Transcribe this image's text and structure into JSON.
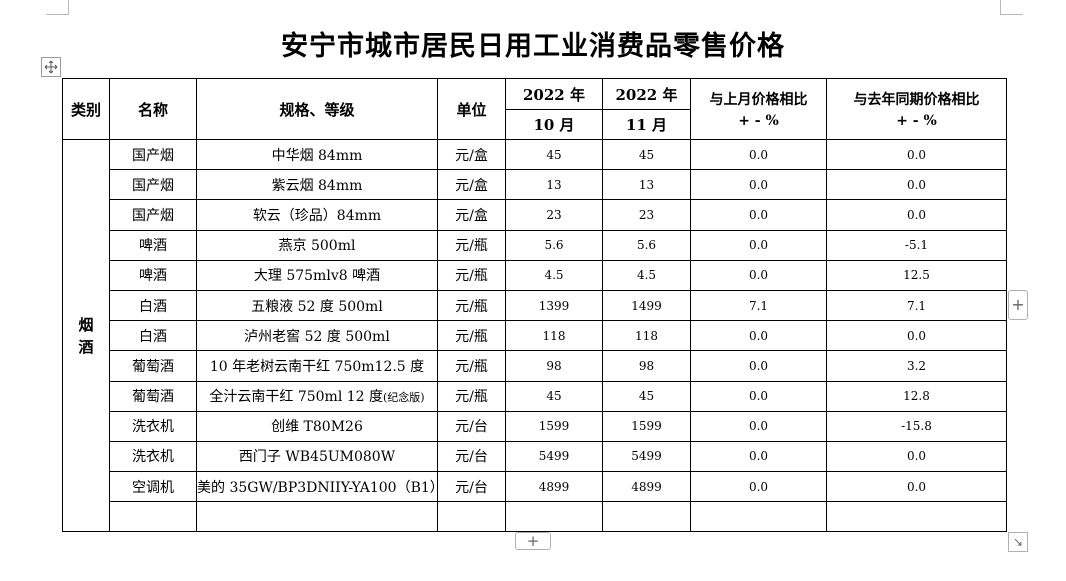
{
  "title": "安宁市城市居民日用工业消费品零售价格",
  "header": {
    "category": "类别",
    "name": "名称",
    "spec": "规格、等级",
    "unit": "单位",
    "year1": "2022 年",
    "month1": "10 月",
    "year2": "2022 年",
    "month2": "11 月",
    "mom_line1": "与上月价格相比",
    "mom_line2": "+ - %",
    "yoy_line1": "与去年同期价格相比",
    "yoy_line2": "+ - %"
  },
  "category_label": "烟酒",
  "category_chars": [
    "烟",
    "酒"
  ],
  "rows": [
    {
      "name": "国产烟",
      "spec": "中华烟 84mm",
      "spec_note": "",
      "unit": "元/盒",
      "oct": "45",
      "nov": "45",
      "mom": "0.0",
      "yoy": "0.0"
    },
    {
      "name": "国产烟",
      "spec": "紫云烟 84mm",
      "spec_note": "",
      "unit": "元/盒",
      "oct": "13",
      "nov": "13",
      "mom": "0.0",
      "yoy": "0.0"
    },
    {
      "name": "国产烟",
      "spec": "软云（珍品）84mm",
      "spec_note": "",
      "unit": "元/盒",
      "oct": "23",
      "nov": "23",
      "mom": "0.0",
      "yoy": "0.0"
    },
    {
      "name": "啤酒",
      "spec": "燕京 500ml",
      "spec_note": "",
      "unit": "元/瓶",
      "oct": "5.6",
      "nov": "5.6",
      "mom": "0.0",
      "yoy": "-5.1"
    },
    {
      "name": "啤酒",
      "spec": "大理 575mlv8 啤酒",
      "spec_note": "",
      "unit": "元/瓶",
      "oct": "4.5",
      "nov": "4.5",
      "mom": "0.0",
      "yoy": "12.5"
    },
    {
      "name": "白酒",
      "spec": "五粮液 52 度 500ml",
      "spec_note": "",
      "unit": "元/瓶",
      "oct": "1399",
      "nov": "1499",
      "mom": "7.1",
      "yoy": "7.1"
    },
    {
      "name": "白酒",
      "spec": "泸州老窖 52 度 500ml",
      "spec_note": "",
      "unit": "元/瓶",
      "oct": "118",
      "nov": "118",
      "mom": "0.0",
      "yoy": "0.0"
    },
    {
      "name": "葡萄酒",
      "spec": "10 年老树云南干红  750m12.5 度",
      "spec_note": "",
      "unit": "元/瓶",
      "oct": "98",
      "nov": "98",
      "mom": "0.0",
      "yoy": "3.2"
    },
    {
      "name": "葡萄酒",
      "spec": "全汁云南干红 750ml 12 度",
      "spec_note": "(纪念版)",
      "unit": "元/瓶",
      "oct": "45",
      "nov": "45",
      "mom": "0.0",
      "yoy": "12.8"
    },
    {
      "name": "洗衣机",
      "spec": "创维 T80M26",
      "spec_note": "",
      "unit": "元/台",
      "oct": "1599",
      "nov": "1599",
      "mom": "0.0",
      "yoy": "-15.8"
    },
    {
      "name": "洗衣机",
      "spec": "西门子 WB45UM080W",
      "spec_note": "",
      "unit": "元/台",
      "oct": "5499",
      "nov": "5499",
      "mom": "0.0",
      "yoy": "0.0"
    },
    {
      "name": "空调机",
      "spec": "美的 35GW/BP3DNIIY-YA100（B1）",
      "spec_note": "",
      "unit": "元/台",
      "oct": "4899",
      "nov": "4899",
      "mom": "0.0",
      "yoy": "0.0"
    }
  ],
  "controls": {
    "move_icon": "move-icon",
    "add_row_glyph": "+",
    "add_col_glyph": "+",
    "resize_glyph": "↘"
  }
}
